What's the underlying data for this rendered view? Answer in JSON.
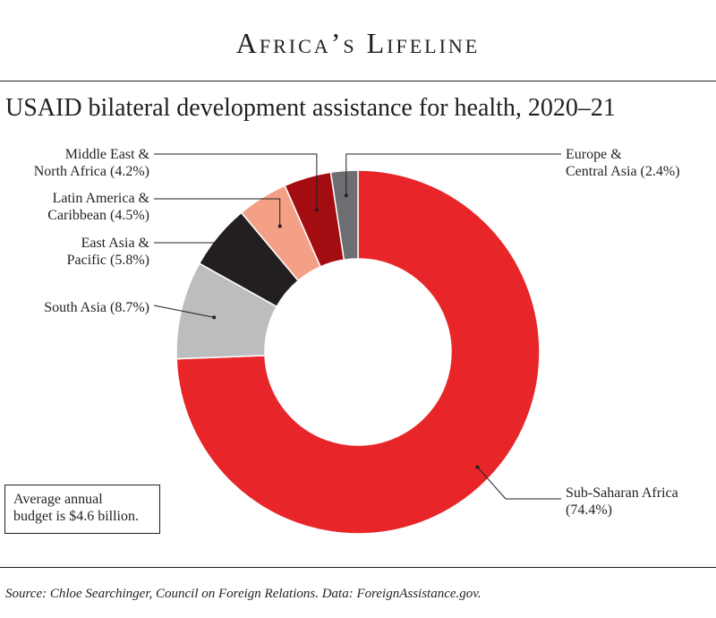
{
  "header": {
    "kicker": "Africa’s Lifeline"
  },
  "note": {
    "line1": "Average annual",
    "line2": "budget is $4.6 billion."
  },
  "source": "Source: Chloe Searchinger, Council on Foreign Relations. Data: ForeignAssistance.gov.",
  "chart_data": {
    "type": "pie",
    "title": "USAID bilateral development assistance for health, 2020–21",
    "unit": "%",
    "slices": [
      {
        "name": "Sub-Saharan Africa",
        "label_lines": [
          "Sub-Saharan Africa",
          "(74.4%)"
        ],
        "value": 74.4,
        "color": "#e8262a"
      },
      {
        "name": "South Asia",
        "label_lines": [
          "South Asia (8.7%)"
        ],
        "value": 8.7,
        "color": "#bcbdbf"
      },
      {
        "name": "East Asia & Pacific",
        "label_lines": [
          "East Asia &",
          "Pacific (5.8%)"
        ],
        "value": 5.8,
        "color": "#231f20"
      },
      {
        "name": "Latin America & Caribbean",
        "label_lines": [
          "Latin America &",
          "Caribbean (4.5%)"
        ],
        "value": 4.5,
        "color": "#f4a086"
      },
      {
        "name": "Middle East & North Africa",
        "label_lines": [
          "Middle East &",
          "North Africa (4.2%)"
        ],
        "value": 4.2,
        "color": "#a30d11"
      },
      {
        "name": "Europe & Central Asia",
        "label_lines": [
          "Europe &",
          "Central Asia (2.4%)"
        ],
        "value": 2.4,
        "color": "#6d6e71"
      }
    ]
  }
}
